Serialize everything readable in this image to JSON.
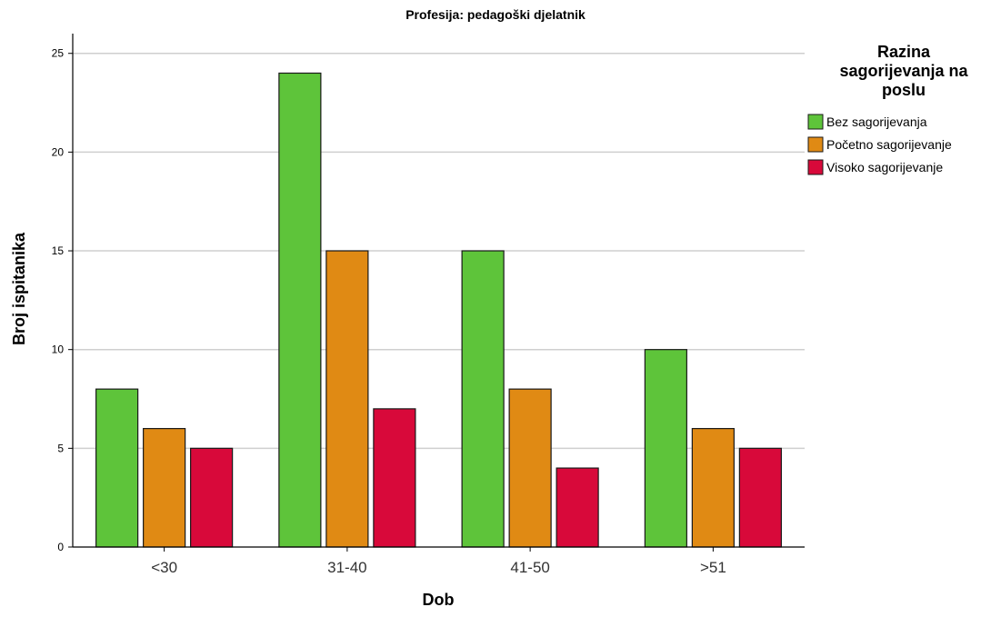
{
  "chart_data": {
    "type": "bar",
    "title": "Profesija: pedagoški djelatnik",
    "xlabel": "Dob",
    "ylabel": "Broj ispitanika",
    "categories": [
      "<30",
      "31-40",
      "41-50",
      ">51"
    ],
    "ylim": [
      0,
      26
    ],
    "yticks": [
      0,
      5,
      10,
      15,
      20,
      25
    ],
    "grid": true,
    "legend": {
      "title_lines": [
        "Razina",
        "sagorijevanja na",
        "poslu"
      ],
      "placement": "top-right"
    },
    "series": [
      {
        "name": "Bez sagorijevanja",
        "color": "#5ec43a",
        "values": [
          8,
          24,
          15,
          10
        ]
      },
      {
        "name": "Početno sagorijevanje",
        "color": "#e08a14",
        "values": [
          6,
          15,
          8,
          6
        ]
      },
      {
        "name": "Visoko sagorijevanje",
        "color": "#d8093a",
        "values": [
          5,
          7,
          4,
          5
        ]
      }
    ]
  }
}
